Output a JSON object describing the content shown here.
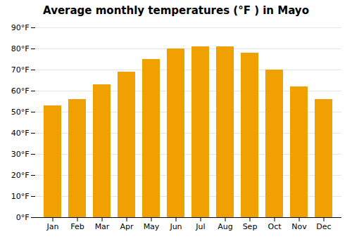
{
  "chart_data": {
    "type": "bar",
    "title": "Average monthly temperatures (°F ) in Mayo",
    "categories": [
      "Jan",
      "Feb",
      "Mar",
      "Apr",
      "May",
      "Jun",
      "Jul",
      "Aug",
      "Sep",
      "Oct",
      "Nov",
      "Dec"
    ],
    "values": [
      53,
      56,
      63,
      69,
      75,
      80,
      81,
      81,
      78,
      70,
      62,
      56
    ],
    "color": "#F0A000",
    "ylim": [
      0,
      90
    ],
    "yticks": [
      {
        "value": 0,
        "label": "0°F"
      },
      {
        "value": 10,
        "label": "10°F"
      },
      {
        "value": 20,
        "label": "20°F"
      },
      {
        "value": 30,
        "label": "30°F"
      },
      {
        "value": 40,
        "label": "40°F"
      },
      {
        "value": 50,
        "label": "50°F"
      },
      {
        "value": 60,
        "label": "60°F"
      },
      {
        "value": 70,
        "label": "70°F"
      },
      {
        "value": 80,
        "label": "80°F"
      },
      {
        "value": 90,
        "label": "90°F"
      }
    ],
    "grid": true
  }
}
